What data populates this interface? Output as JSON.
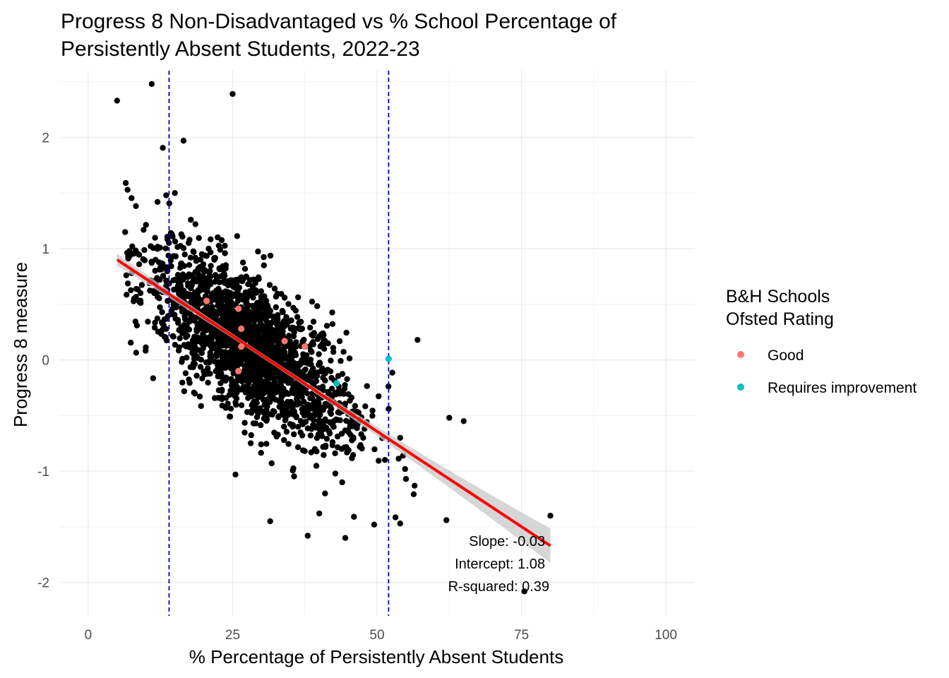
{
  "chart_data": {
    "type": "scatter",
    "title_lines": [
      "Progress 8 Non-Disadvantaged vs % School Percentage of",
      "Persistently Absent Students, 2022-23"
    ],
    "xlabel": "% Percentage of Persistently Absent Students",
    "ylabel": "Progress 8 measure",
    "xlim": [
      -5,
      105
    ],
    "ylim": [
      -2.3,
      2.6
    ],
    "x_ticks": [
      0,
      25,
      50,
      75,
      100
    ],
    "y_ticks": [
      -2,
      -1,
      0,
      1,
      2
    ],
    "grid": true,
    "legend": {
      "position": "right",
      "title_lines": [
        "B&H Schools",
        "Ofsted Rating"
      ],
      "entries": [
        {
          "label": "Good",
          "color": "#F8766D"
        },
        {
          "label": "Requires improvement",
          "color": "#00BFC4"
        }
      ]
    },
    "reference_lines_x": [
      14,
      52
    ],
    "regression": {
      "x": [
        5,
        80
      ],
      "y": [
        0.9,
        -1.67
      ],
      "color": "#FF0000",
      "band_color": "#c8c8c8"
    },
    "annotations": [
      "Slope: -0.03",
      "Intercept: 1.08",
      "R-squared: 0.39"
    ],
    "cloud": {
      "n": 2100,
      "x_mean": 28,
      "x_sd": 8.5,
      "x_min": 6,
      "x_max": 60,
      "intercept": 1.08,
      "slope": -0.0342,
      "resid_sd": 0.3,
      "color": "#000000"
    },
    "all_schools_points": [
      [
        5,
        2.33
      ],
      [
        11,
        2.48
      ],
      [
        25,
        2.39
      ],
      [
        16.5,
        1.97
      ],
      [
        6.5,
        1.59
      ],
      [
        15,
        1.5
      ],
      [
        13.5,
        1.48
      ],
      [
        12,
        1.42
      ],
      [
        57,
        0.18
      ],
      [
        62.5,
        -0.52
      ],
      [
        65,
        -0.55
      ],
      [
        52,
        -0.44
      ],
      [
        54,
        -0.7
      ],
      [
        54.5,
        -0.86
      ],
      [
        55,
        -1.07
      ],
      [
        56.5,
        -1.13
      ],
      [
        62,
        -1.44
      ],
      [
        54,
        -1.47
      ],
      [
        49.5,
        -1.48
      ],
      [
        44.5,
        -1.6
      ],
      [
        38,
        -1.58
      ],
      [
        31.5,
        -1.45
      ],
      [
        46,
        -1.41
      ],
      [
        40,
        -1.38
      ],
      [
        80,
        -1.4
      ],
      [
        75.5,
        -2.08
      ],
      [
        25.5,
        -1.03
      ],
      [
        41,
        -1.2
      ]
    ],
    "bh_schools": [
      {
        "rating": "Good",
        "points": [
          [
            20.5,
            0.53
          ],
          [
            26,
            0.46
          ],
          [
            26.5,
            0.28
          ],
          [
            26.5,
            0.12
          ],
          [
            26,
            -0.1
          ],
          [
            34,
            0.17
          ],
          [
            37.5,
            0.12
          ]
        ]
      },
      {
        "rating": "Requires improvement",
        "points": [
          [
            52,
            0.01
          ],
          [
            43,
            -0.21
          ]
        ]
      }
    ]
  }
}
